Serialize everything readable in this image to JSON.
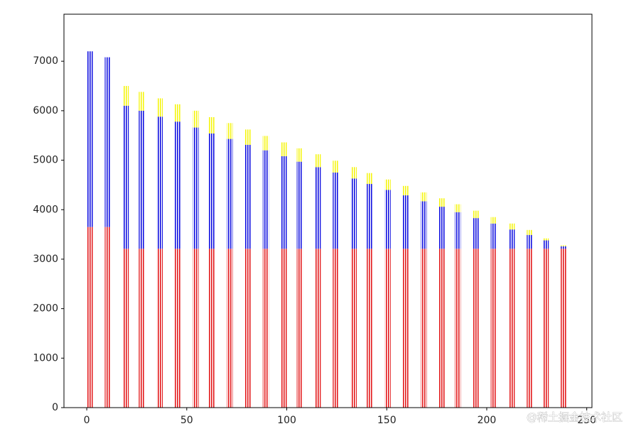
{
  "chart_data": {
    "type": "bar",
    "stacked": true,
    "x": [
      0,
      9,
      18,
      26,
      35,
      44,
      53,
      61,
      70,
      79,
      88,
      97,
      105,
      114,
      123,
      132,
      140,
      149,
      158,
      167,
      176,
      184,
      193,
      202,
      211,
      220,
      228,
      237
    ],
    "series": [
      {
        "color": "#e31a1c",
        "values": [
          3650,
          3650,
          3210,
          3210,
          3210,
          3210,
          3210,
          3210,
          3210,
          3210,
          3210,
          3210,
          3210,
          3210,
          3210,
          3210,
          3210,
          3210,
          3210,
          3210,
          3210,
          3210,
          3210,
          3210,
          3210,
          3210,
          3210,
          3210
        ]
      },
      {
        "color": "#1010e0",
        "values": [
          3550,
          3430,
          2890,
          2790,
          2670,
          2570,
          2450,
          2330,
          2220,
          2100,
          1990,
          1870,
          1760,
          1650,
          1540,
          1420,
          1310,
          1190,
          1080,
          960,
          850,
          740,
          620,
          510,
          390,
          280,
          170,
          50
        ]
      },
      {
        "color": "#f5f510",
        "values": [
          0,
          0,
          400,
          380,
          370,
          350,
          340,
          330,
          320,
          310,
          290,
          280,
          270,
          260,
          240,
          230,
          220,
          210,
          190,
          180,
          170,
          160,
          150,
          130,
          120,
          100,
          40,
          20
        ]
      }
    ],
    "xlim": [
      -11.4,
      252.6
    ],
    "xticks": [
      0,
      50,
      100,
      150,
      200,
      250
    ],
    "ylim": [
      0,
      7950
    ],
    "yticks": [
      0,
      1000,
      2000,
      3000,
      4000,
      5000,
      6000,
      7000
    ],
    "watermark": "@稀土掘金技术社区"
  }
}
